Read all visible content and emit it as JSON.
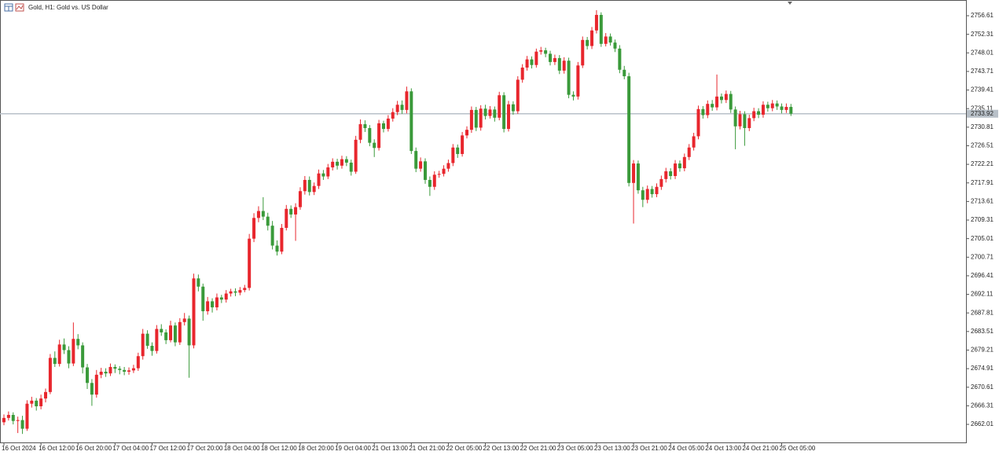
{
  "chart_data": {
    "type": "candlestick",
    "title": "Gold, H1:  Gold vs. US Dollar",
    "up_color": "#e8262d",
    "down_color": "#3a9a3a",
    "last_price": 2733.92,
    "last_price_color": "#b8c0c8",
    "ylim": [
      2657.83,
      2760.25
    ],
    "yticks": [
      2756.61,
      2752.31,
      2748.01,
      2743.71,
      2739.41,
      2735.11,
      2730.81,
      2726.51,
      2722.21,
      2717.91,
      2713.61,
      2709.31,
      2705.01,
      2700.71,
      2696.41,
      2692.11,
      2687.81,
      2683.51,
      2679.21,
      2674.91,
      2670.61,
      2666.31,
      2662.01
    ],
    "categories": [
      "16 Oct 2024",
      null,
      null,
      null,
      null,
      null,
      null,
      null,
      "16 Oct 12:00",
      null,
      null,
      null,
      null,
      null,
      null,
      null,
      "16 Oct 20:00",
      null,
      null,
      null,
      null,
      null,
      null,
      null,
      "17 Oct 04:00",
      null,
      null,
      null,
      null,
      null,
      null,
      null,
      "17 Oct 12:00",
      null,
      null,
      null,
      null,
      null,
      null,
      null,
      "17 Oct 20:00",
      null,
      null,
      null,
      null,
      null,
      null,
      null,
      "18 Oct 04:00",
      null,
      null,
      null,
      null,
      null,
      null,
      null,
      "18 Oct 12:00",
      null,
      null,
      null,
      null,
      null,
      null,
      null,
      "18 Oct 20:00",
      null,
      null,
      null,
      null,
      null,
      null,
      null,
      "19 Oct 04:00",
      null,
      null,
      null,
      null,
      null,
      null,
      null,
      "21 Oct 13:00",
      null,
      null,
      null,
      null,
      null,
      null,
      null,
      "21 Oct 21:00",
      null,
      null,
      null,
      null,
      null,
      null,
      null,
      "22 Oct 05:00",
      null,
      null,
      null,
      null,
      null,
      null,
      null,
      "22 Oct 13:00",
      null,
      null,
      null,
      null,
      null,
      null,
      null,
      "22 Oct 21:00",
      null,
      null,
      null,
      null,
      null,
      null,
      null,
      "23 Oct 05:00",
      null,
      null,
      null,
      null,
      null,
      null,
      null,
      "23 Oct 13:00",
      null,
      null,
      null,
      null,
      null,
      null,
      null,
      "23 Oct 21:00",
      null,
      null,
      null,
      null,
      null,
      null,
      null,
      "24 Oct 05:00",
      null,
      null,
      null,
      null,
      null,
      null,
      null,
      "24 Oct 13:00",
      null,
      null,
      null,
      null,
      null,
      null,
      null,
      "24 Oct 21:00",
      null,
      null,
      null,
      null,
      null,
      null,
      null,
      "25 Oct 05:00",
      null,
      null
    ],
    "ohlc": [
      [
        2662.5,
        2664.3,
        2661.8,
        2663.5
      ],
      [
        2663.5,
        2665.0,
        2662.9,
        2664.2
      ],
      [
        2664.2,
        2664.8,
        2662.0,
        2662.8
      ],
      [
        2662.8,
        2663.8,
        2660.0,
        2663.0
      ],
      [
        2663.0,
        2664.0,
        2659.8,
        2661.0
      ],
      [
        2661.0,
        2667.6,
        2660.5,
        2666.8
      ],
      [
        2666.8,
        2668.4,
        2665.9,
        2667.5
      ],
      [
        2667.5,
        2668.1,
        2665.2,
        2666.2
      ],
      [
        2666.2,
        2668.9,
        2665.5,
        2668.0
      ],
      [
        2668.0,
        2670.3,
        2667.1,
        2669.5
      ],
      [
        2669.5,
        2678.3,
        2669.0,
        2677.4
      ],
      [
        2677.4,
        2678.9,
        2675.3,
        2676.0
      ],
      [
        2676.0,
        2681.6,
        2675.4,
        2680.5
      ],
      [
        2680.5,
        2681.9,
        2678.3,
        2679.2
      ],
      [
        2679.2,
        2680.1,
        2675.0,
        2676.1
      ],
      [
        2676.1,
        2685.6,
        2675.5,
        2681.8
      ],
      [
        2681.8,
        2682.9,
        2679.4,
        2680.3
      ],
      [
        2680.3,
        2681.0,
        2673.8,
        2675.2
      ],
      [
        2675.2,
        2676.0,
        2670.2,
        2671.6
      ],
      [
        2671.6,
        2672.5,
        2666.3,
        2668.9
      ],
      [
        2668.9,
        2674.6,
        2668.2,
        2673.5
      ],
      [
        2673.5,
        2675.1,
        2672.7,
        2674.2
      ],
      [
        2674.2,
        2675.0,
        2673.0,
        2673.8
      ],
      [
        2673.8,
        2676.1,
        2673.2,
        2675.3
      ],
      [
        2675.3,
        2675.9,
        2673.9,
        2674.9
      ],
      [
        2674.9,
        2675.5,
        2673.6,
        2674.6
      ],
      [
        2674.6,
        2675.3,
        2673.4,
        2674.2
      ],
      [
        2674.2,
        2675.2,
        2673.5,
        2674.5
      ],
      [
        2674.5,
        2675.8,
        2673.9,
        2675.0
      ],
      [
        2675.0,
        2678.6,
        2674.4,
        2677.8
      ],
      [
        2677.8,
        2684.1,
        2677.0,
        2683.0
      ],
      [
        2683.0,
        2683.8,
        2679.5,
        2680.2
      ],
      [
        2680.2,
        2681.0,
        2677.9,
        2679.0
      ],
      [
        2679.0,
        2685.0,
        2678.4,
        2684.1
      ],
      [
        2684.1,
        2685.2,
        2682.5,
        2683.3
      ],
      [
        2683.3,
        2684.0,
        2680.6,
        2681.5
      ],
      [
        2681.5,
        2686.0,
        2681.0,
        2684.9
      ],
      [
        2684.9,
        2685.6,
        2680.1,
        2681.0
      ],
      [
        2681.0,
        2686.6,
        2680.4,
        2685.7
      ],
      [
        2685.7,
        2687.8,
        2684.9,
        2686.5
      ],
      [
        2686.5,
        2687.2,
        2672.8,
        2680.3
      ],
      [
        2680.3,
        2696.9,
        2679.6,
        2695.8
      ],
      [
        2695.8,
        2696.7,
        2692.8,
        2693.9
      ],
      [
        2693.9,
        2694.6,
        2686.0,
        2688.2
      ],
      [
        2688.2,
        2691.5,
        2687.4,
        2690.5
      ],
      [
        2690.5,
        2691.2,
        2687.9,
        2689.1
      ],
      [
        2689.1,
        2692.3,
        2688.4,
        2691.4
      ],
      [
        2691.4,
        2692.0,
        2690.1,
        2690.9
      ],
      [
        2690.9,
        2693.1,
        2690.2,
        2692.3
      ],
      [
        2692.3,
        2693.4,
        2691.6,
        2692.8
      ],
      [
        2692.8,
        2693.5,
        2691.7,
        2692.5
      ],
      [
        2692.5,
        2693.8,
        2691.9,
        2693.1
      ],
      [
        2693.1,
        2694.3,
        2692.6,
        2693.6
      ],
      [
        2693.6,
        2706.1,
        2693.0,
        2705.0
      ],
      [
        2705.0,
        2710.9,
        2704.2,
        2709.8
      ],
      [
        2709.8,
        2712.5,
        2708.8,
        2711.4
      ],
      [
        2711.4,
        2714.6,
        2709.3,
        2710.1
      ],
      [
        2710.1,
        2711.0,
        2706.9,
        2708.0
      ],
      [
        2708.0,
        2709.1,
        2702.5,
        2703.4
      ],
      [
        2703.4,
        2704.6,
        2701.1,
        2702.0
      ],
      [
        2702.0,
        2708.4,
        2701.4,
        2707.5
      ],
      [
        2707.5,
        2712.8,
        2706.9,
        2711.9
      ],
      [
        2711.9,
        2712.7,
        2709.8,
        2710.6
      ],
      [
        2710.6,
        2713.2,
        2704.5,
        2712.3
      ],
      [
        2712.3,
        2716.9,
        2711.7,
        2716.0
      ],
      [
        2716.0,
        2719.5,
        2715.2,
        2718.6
      ],
      [
        2718.6,
        2719.4,
        2715.0,
        2715.8
      ],
      [
        2715.8,
        2718.0,
        2715.1,
        2717.2
      ],
      [
        2717.2,
        2721.0,
        2716.5,
        2720.1
      ],
      [
        2720.1,
        2720.9,
        2718.6,
        2719.4
      ],
      [
        2719.4,
        2722.3,
        2718.8,
        2721.5
      ],
      [
        2721.5,
        2723.6,
        2720.8,
        2722.8
      ],
      [
        2722.8,
        2723.5,
        2721.0,
        2721.9
      ],
      [
        2721.9,
        2724.2,
        2721.2,
        2723.4
      ],
      [
        2723.4,
        2724.1,
        2721.8,
        2722.6
      ],
      [
        2722.6,
        2723.3,
        2719.6,
        2720.5
      ],
      [
        2720.5,
        2728.8,
        2720.0,
        2727.9
      ],
      [
        2727.9,
        2732.6,
        2727.1,
        2731.5
      ],
      [
        2731.5,
        2732.4,
        2729.7,
        2730.6
      ],
      [
        2730.6,
        2731.3,
        2726.4,
        2727.2
      ],
      [
        2727.2,
        2728.0,
        2723.9,
        2726.0
      ],
      [
        2726.0,
        2732.5,
        2725.4,
        2731.7
      ],
      [
        2731.7,
        2732.3,
        2729.6,
        2730.4
      ],
      [
        2730.4,
        2733.6,
        2729.8,
        2732.8
      ],
      [
        2732.8,
        2735.2,
        2732.1,
        2734.3
      ],
      [
        2734.3,
        2736.9,
        2733.6,
        2736.0
      ],
      [
        2736.0,
        2737.0,
        2733.9,
        2734.8
      ],
      [
        2734.8,
        2740.2,
        2734.0,
        2739.1
      ],
      [
        2739.1,
        2739.8,
        2724.6,
        2725.3
      ],
      [
        2725.3,
        2726.1,
        2720.4,
        2721.2
      ],
      [
        2721.2,
        2723.8,
        2720.5,
        2722.9
      ],
      [
        2722.9,
        2723.6,
        2717.7,
        2718.6
      ],
      [
        2718.6,
        2719.4,
        2714.9,
        2717.0
      ],
      [
        2717.0,
        2720.6,
        2716.3,
        2719.8
      ],
      [
        2719.8,
        2720.7,
        2719.1,
        2720.0
      ],
      [
        2720.0,
        2722.0,
        2719.4,
        2721.2
      ],
      [
        2721.2,
        2723.3,
        2720.5,
        2722.5
      ],
      [
        2722.5,
        2726.9,
        2721.8,
        2726.1
      ],
      [
        2726.1,
        2726.8,
        2723.7,
        2724.6
      ],
      [
        2724.6,
        2729.7,
        2724.0,
        2728.9
      ],
      [
        2728.9,
        2731.0,
        2728.2,
        2730.2
      ],
      [
        2730.2,
        2735.6,
        2729.5,
        2734.8
      ],
      [
        2734.8,
        2735.5,
        2729.9,
        2730.7
      ],
      [
        2730.7,
        2735.9,
        2730.0,
        2735.1
      ],
      [
        2735.1,
        2736.0,
        2732.6,
        2733.4
      ],
      [
        2733.4,
        2735.7,
        2732.8,
        2734.9
      ],
      [
        2734.9,
        2735.6,
        2732.1,
        2733.0
      ],
      [
        2733.0,
        2739.0,
        2732.4,
        2738.2
      ],
      [
        2738.2,
        2738.9,
        2729.6,
        2730.4
      ],
      [
        2730.4,
        2736.9,
        2729.8,
        2736.1
      ],
      [
        2736.1,
        2736.8,
        2733.7,
        2734.5
      ],
      [
        2734.5,
        2742.6,
        2733.9,
        2741.8
      ],
      [
        2741.8,
        2745.4,
        2741.1,
        2744.6
      ],
      [
        2744.6,
        2747.3,
        2743.9,
        2746.5
      ],
      [
        2746.5,
        2747.2,
        2744.4,
        2745.2
      ],
      [
        2745.2,
        2749.0,
        2744.6,
        2748.3
      ],
      [
        2748.3,
        2749.4,
        2747.6,
        2748.6
      ],
      [
        2748.6,
        2749.2,
        2747.0,
        2747.8
      ],
      [
        2747.8,
        2748.5,
        2745.1,
        2745.9
      ],
      [
        2745.9,
        2747.6,
        2745.2,
        2746.8
      ],
      [
        2746.8,
        2747.5,
        2743.1,
        2743.9
      ],
      [
        2743.9,
        2747.0,
        2743.2,
        2746.2
      ],
      [
        2746.2,
        2746.9,
        2737.5,
        2738.3
      ],
      [
        2738.3,
        2739.1,
        2737.0,
        2737.9
      ],
      [
        2737.9,
        2745.9,
        2737.2,
        2745.1
      ],
      [
        2745.1,
        2751.8,
        2744.5,
        2751.0
      ],
      [
        2751.0,
        2751.7,
        2748.8,
        2749.6
      ],
      [
        2749.6,
        2754.0,
        2748.9,
        2753.2
      ],
      [
        2753.2,
        2757.9,
        2752.5,
        2756.8
      ],
      [
        2756.8,
        2757.4,
        2749.4,
        2750.1
      ],
      [
        2750.1,
        2752.6,
        2749.5,
        2751.8
      ],
      [
        2751.8,
        2752.5,
        2749.7,
        2750.4
      ],
      [
        2750.4,
        2751.1,
        2748.2,
        2749.0
      ],
      [
        2749.0,
        2749.8,
        2743.3,
        2744.1
      ],
      [
        2744.1,
        2745.0,
        2741.9,
        2742.6
      ],
      [
        2742.6,
        2743.4,
        2717.1,
        2717.9
      ],
      [
        2717.9,
        2723.2,
        2708.5,
        2722.4
      ],
      [
        2722.4,
        2723.1,
        2715.4,
        2716.2
      ],
      [
        2716.2,
        2717.0,
        2712.3,
        2714.0
      ],
      [
        2714.0,
        2717.3,
        2713.2,
        2716.5
      ],
      [
        2716.5,
        2717.2,
        2714.5,
        2715.3
      ],
      [
        2715.3,
        2717.8,
        2714.6,
        2717.0
      ],
      [
        2717.0,
        2719.6,
        2716.3,
        2718.8
      ],
      [
        2718.8,
        2721.4,
        2718.0,
        2720.6
      ],
      [
        2720.6,
        2721.3,
        2718.7,
        2719.5
      ],
      [
        2719.5,
        2723.2,
        2718.8,
        2722.4
      ],
      [
        2722.4,
        2723.1,
        2720.5,
        2721.3
      ],
      [
        2721.3,
        2724.7,
        2720.6,
        2723.9
      ],
      [
        2723.9,
        2726.9,
        2723.2,
        2726.1
      ],
      [
        2726.1,
        2729.5,
        2725.4,
        2728.7
      ],
      [
        2728.7,
        2735.8,
        2728.0,
        2735.0
      ],
      [
        2735.0,
        2735.7,
        2732.8,
        2733.6
      ],
      [
        2733.6,
        2737.0,
        2732.9,
        2736.2
      ],
      [
        2736.2,
        2737.1,
        2734.6,
        2735.4
      ],
      [
        2735.4,
        2743.0,
        2734.7,
        2737.9
      ],
      [
        2737.9,
        2738.6,
        2736.3,
        2737.1
      ],
      [
        2737.1,
        2739.3,
        2736.4,
        2738.5
      ],
      [
        2738.5,
        2739.2,
        2734.1,
        2734.9
      ],
      [
        2734.9,
        2735.6,
        2725.7,
        2731.0
      ],
      [
        2731.0,
        2734.6,
        2730.3,
        2733.8
      ],
      [
        2733.8,
        2734.5,
        2726.5,
        2730.6
      ],
      [
        2730.6,
        2733.7,
        2729.9,
        2732.9
      ],
      [
        2732.9,
        2735.3,
        2732.2,
        2734.5
      ],
      [
        2734.5,
        2735.2,
        2732.9,
        2733.7
      ],
      [
        2733.7,
        2736.8,
        2733.0,
        2736.0
      ],
      [
        2736.0,
        2736.7,
        2734.4,
        2735.2
      ],
      [
        2735.2,
        2737.1,
        2734.5,
        2736.3
      ],
      [
        2736.3,
        2737.0,
        2734.8,
        2735.6
      ],
      [
        2735.6,
        2736.3,
        2734.0,
        2734.8
      ],
      [
        2734.8,
        2736.3,
        2734.1,
        2735.5
      ],
      [
        2735.5,
        2736.2,
        2733.4,
        2733.92
      ]
    ]
  }
}
